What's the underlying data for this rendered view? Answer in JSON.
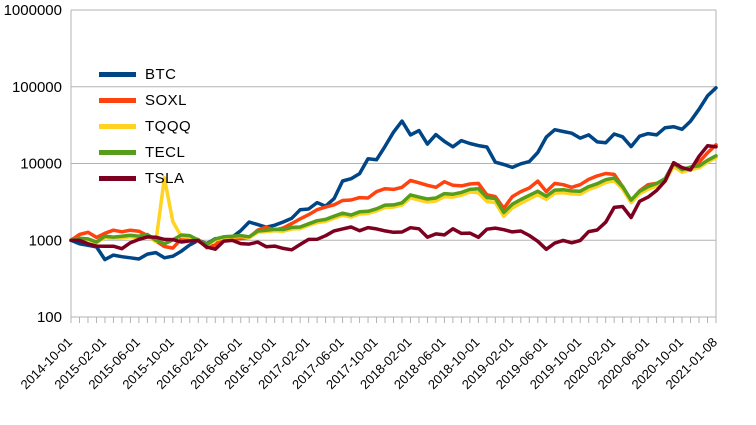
{
  "chart_data": {
    "type": "line",
    "title": "",
    "xlabel": "",
    "ylabel": "",
    "y_scale": "log",
    "ylim": [
      100,
      1000000
    ],
    "y_tick_labels": [
      "1000000",
      "100000",
      "10000",
      "1000",
      "100"
    ],
    "y_tick_values": [
      1000000,
      100000,
      10000,
      1000,
      100
    ],
    "grid": "horizontal",
    "legend_position": "inside-upper-left",
    "n_points": 77,
    "x_label_step": 4,
    "x_tick_labels": [
      "2014-10-01",
      "2015-02-01",
      "2015-06-01",
      "2015-10-01",
      "2016-02-01",
      "2016-06-01",
      "2016-10-01",
      "2017-02-01",
      "2017-06-01",
      "2017-10-01",
      "2018-02-01",
      "2018-06-01",
      "2018-10-01",
      "2019-02-01",
      "2019-06-01",
      "2019-10-01",
      "2020-02-01",
      "2020-06-01",
      "2020-10-01",
      "2021-01-08"
    ],
    "series": [
      {
        "name": "BTC",
        "color": "#004586",
        "values": [
          1000,
          900,
          860,
          820,
          560,
          640,
          610,
          590,
          570,
          660,
          690,
          590,
          620,
          720,
          870,
          1000,
          900,
          1050,
          1020,
          1100,
          1330,
          1730,
          1600,
          1480,
          1570,
          1730,
          1930,
          2490,
          2550,
          3090,
          2780,
          3490,
          5910,
          6330,
          7390,
          11500,
          11170,
          16700,
          25600,
          35700,
          23600,
          26800,
          17900,
          23800,
          19400,
          16500,
          19900,
          18200,
          17100,
          16400,
          10400,
          9700,
          8900,
          9900,
          10600,
          13900,
          22100,
          27600,
          26100,
          24800,
          21400,
          23600,
          19100,
          18600,
          24200,
          22300,
          16600,
          22700,
          24500,
          23600,
          29300,
          30200,
          27900,
          35600,
          50900,
          76000,
          97000
        ]
      },
      {
        "name": "SOXL",
        "color": "#ff420e",
        "values": [
          1000,
          1190,
          1270,
          1090,
          1230,
          1350,
          1290,
          1350,
          1310,
          1150,
          980,
          830,
          790,
          1040,
          1090,
          1020,
          800,
          870,
          1100,
          1030,
          1050,
          1090,
          1350,
          1480,
          1350,
          1450,
          1650,
          1900,
          2150,
          2500,
          2700,
          2900,
          3300,
          3350,
          3600,
          3550,
          4300,
          4700,
          4600,
          4900,
          6000,
          5600,
          5200,
          4900,
          5800,
          5200,
          5100,
          5400,
          5500,
          3900,
          3700,
          2600,
          3700,
          4300,
          4800,
          5900,
          4300,
          5500,
          5300,
          4900,
          5300,
          6200,
          6900,
          7400,
          7200,
          5000,
          3300,
          4400,
          5300,
          5500,
          5900,
          9500,
          7800,
          8800,
          10400,
          13800,
          17500
        ]
      },
      {
        "name": "TQQQ",
        "color": "#ffd320",
        "values": [
          1000,
          1060,
          1020,
          930,
          1090,
          1060,
          1080,
          1110,
          1080,
          1130,
          960,
          6500,
          1750,
          1120,
          1100,
          960,
          860,
          1010,
          1080,
          1100,
          1120,
          1080,
          1270,
          1300,
          1330,
          1310,
          1400,
          1420,
          1560,
          1700,
          1760,
          1940,
          2120,
          2000,
          2200,
          2230,
          2410,
          2680,
          2700,
          2870,
          3560,
          3350,
          3150,
          3250,
          3700,
          3650,
          3850,
          4250,
          4150,
          3200,
          3100,
          2050,
          2640,
          3030,
          3470,
          3930,
          3420,
          4110,
          4170,
          4020,
          3970,
          4580,
          5000,
          5650,
          5960,
          4630,
          3090,
          4020,
          4630,
          5070,
          5860,
          9200,
          7700,
          8300,
          8800,
          10400,
          11900
        ]
      },
      {
        "name": "TECL",
        "color": "#579d1c",
        "values": [
          1000,
          1060,
          1040,
          950,
          1130,
          1100,
          1130,
          1160,
          1130,
          1190,
          1000,
          900,
          1010,
          1170,
          1150,
          1000,
          880,
          1040,
          1110,
          1130,
          1150,
          1110,
          1320,
          1350,
          1390,
          1380,
          1470,
          1490,
          1640,
          1800,
          1870,
          2060,
          2250,
          2130,
          2350,
          2380,
          2570,
          2870,
          2890,
          3080,
          3900,
          3650,
          3450,
          3550,
          4050,
          3980,
          4200,
          4600,
          4700,
          3600,
          3500,
          2300,
          2950,
          3400,
          3850,
          4350,
          3750,
          4500,
          4560,
          4400,
          4350,
          5000,
          5450,
          6150,
          6500,
          5000,
          3340,
          4340,
          5000,
          5480,
          6330,
          10000,
          8300,
          9000,
          9300,
          11000,
          12600
        ]
      },
      {
        "name": "TSLA",
        "color": "#7e0021",
        "values": [
          1000,
          995,
          900,
          840,
          836,
          836,
          775,
          930,
          1025,
          1105,
          1095,
          1025,
          1020,
          950,
          980,
          990,
          815,
          765,
          975,
          995,
          905,
          890,
          947,
          825,
          840,
          782,
          750,
          880,
          1025,
          1030,
          1145,
          1325,
          1404,
          1486,
          1330,
          1462,
          1404,
          1322,
          1268,
          1280,
          1458,
          1412,
          1095,
          1210,
          1173,
          1408,
          1227,
          1240,
          1091,
          1392,
          1441,
          1371,
          1285,
          1318,
          1153,
          968,
          762,
          918,
          996,
          927,
          992,
          1297,
          1359,
          1721,
          2677,
          2751,
          1977,
          3221,
          3645,
          4448,
          5889,
          10255,
          8834,
          8237,
          12400,
          17000,
          16500
        ]
      }
    ]
  },
  "colors": {
    "background": "#ffffff",
    "gridline": "#b3b3b3",
    "axis_text": "#000000"
  }
}
